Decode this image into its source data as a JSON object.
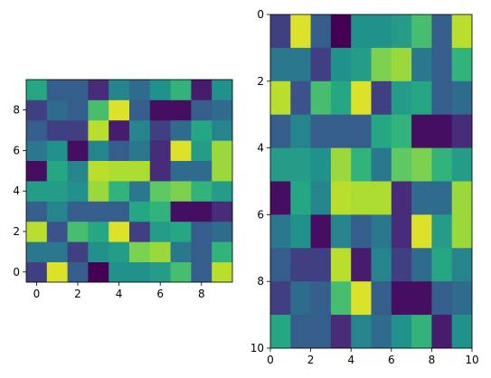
{
  "chart_data": [
    {
      "type": "heatmap",
      "title": "",
      "xlabel": "",
      "ylabel": "",
      "colormap": "viridis",
      "value_range": [
        0,
        1
      ],
      "xlim": [
        -0.5,
        9.5
      ],
      "ylim": [
        9.5,
        -0.5
      ],
      "x_ticks": [
        0,
        2,
        4,
        6,
        8
      ],
      "y_ticks": [
        0,
        2,
        4,
        6,
        8
      ],
      "x_tick_labels": [
        "0",
        "2",
        "4",
        "6",
        "8"
      ],
      "y_tick_labels": [
        "0",
        "2",
        "4",
        "6",
        "8"
      ],
      "grid": false,
      "legend": "none",
      "values": [
        [
          0.2,
          0.95,
          0.3,
          0.0,
          0.5,
          0.5,
          0.55,
          0.7,
          0.3,
          0.9
        ],
        [
          0.4,
          0.4,
          0.2,
          0.5,
          0.55,
          0.8,
          0.85,
          0.4,
          0.3,
          0.65
        ],
        [
          0.9,
          0.25,
          0.7,
          0.6,
          0.95,
          0.2,
          0.55,
          0.6,
          0.3,
          0.35
        ],
        [
          0.3,
          0.45,
          0.3,
          0.3,
          0.3,
          0.6,
          0.65,
          0.05,
          0.05,
          0.15
        ],
        [
          0.55,
          0.55,
          0.5,
          0.85,
          0.65,
          0.4,
          0.75,
          0.8,
          0.65,
          0.55
        ],
        [
          0.05,
          0.6,
          0.45,
          0.9,
          0.88,
          0.88,
          0.15,
          0.35,
          0.35,
          0.85
        ],
        [
          0.4,
          0.5,
          0.05,
          0.45,
          0.3,
          0.4,
          0.15,
          0.95,
          0.55,
          0.85
        ],
        [
          0.3,
          0.2,
          0.2,
          0.9,
          0.1,
          0.45,
          0.2,
          0.35,
          0.6,
          0.45
        ],
        [
          0.2,
          0.35,
          0.3,
          0.7,
          0.95,
          0.3,
          0.05,
          0.05,
          0.3,
          0.35
        ],
        [
          0.6,
          0.3,
          0.3,
          0.15,
          0.45,
          0.35,
          0.5,
          0.65,
          0.1,
          0.5
        ]
      ]
    },
    {
      "type": "heatmap",
      "title": "",
      "xlabel": "",
      "ylabel": "",
      "colormap": "viridis",
      "value_range": [
        0,
        1
      ],
      "xlim": [
        0,
        10
      ],
      "ylim": [
        0,
        10
      ],
      "x_ticks": [
        0,
        2,
        4,
        6,
        8,
        10
      ],
      "y_ticks": [
        0,
        2,
        4,
        6,
        8,
        10
      ],
      "x_tick_labels": [
        "0",
        "2",
        "4",
        "6",
        "8",
        "10"
      ],
      "y_tick_labels": [
        "0",
        "2",
        "4",
        "6",
        "8",
        "10"
      ],
      "grid": false,
      "legend": "none",
      "values": [
        [
          0.2,
          0.95,
          0.3,
          0.0,
          0.5,
          0.5,
          0.55,
          0.7,
          0.3,
          0.9
        ],
        [
          0.4,
          0.4,
          0.2,
          0.5,
          0.55,
          0.8,
          0.85,
          0.4,
          0.3,
          0.65
        ],
        [
          0.9,
          0.25,
          0.7,
          0.6,
          0.95,
          0.2,
          0.55,
          0.6,
          0.3,
          0.35
        ],
        [
          0.3,
          0.45,
          0.3,
          0.3,
          0.3,
          0.6,
          0.65,
          0.05,
          0.05,
          0.15
        ],
        [
          0.55,
          0.55,
          0.5,
          0.85,
          0.65,
          0.4,
          0.75,
          0.8,
          0.65,
          0.55
        ],
        [
          0.05,
          0.6,
          0.45,
          0.9,
          0.88,
          0.88,
          0.15,
          0.35,
          0.35,
          0.85
        ],
        [
          0.4,
          0.5,
          0.05,
          0.45,
          0.3,
          0.4,
          0.15,
          0.95,
          0.55,
          0.85
        ],
        [
          0.3,
          0.2,
          0.2,
          0.9,
          0.1,
          0.45,
          0.2,
          0.35,
          0.6,
          0.45
        ],
        [
          0.2,
          0.35,
          0.3,
          0.7,
          0.95,
          0.3,
          0.05,
          0.05,
          0.3,
          0.35
        ],
        [
          0.6,
          0.3,
          0.3,
          0.15,
          0.45,
          0.35,
          0.5,
          0.65,
          0.1,
          0.5
        ]
      ]
    }
  ]
}
